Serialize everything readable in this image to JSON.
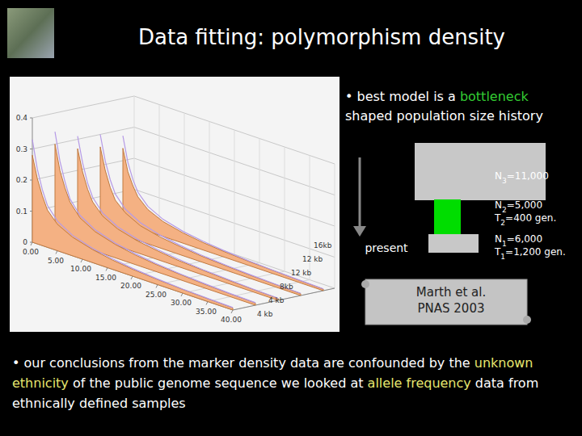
{
  "title": "Data fitting: polymorphism density",
  "chart_data": {
    "type": "area",
    "x": [
      0,
      1,
      2,
      3,
      5,
      8,
      12,
      16,
      20,
      25,
      30,
      35,
      40
    ],
    "xlim": [
      0,
      40
    ],
    "xticks": [
      {
        "value": 0,
        "label": "0.00"
      },
      {
        "value": 5,
        "label": "5.00"
      },
      {
        "value": 10,
        "label": "10.00"
      },
      {
        "value": 15,
        "label": "15.00"
      },
      {
        "value": 20,
        "label": "20.00"
      },
      {
        "value": 25,
        "label": "25.00"
      },
      {
        "value": 30,
        "label": "30.00"
      },
      {
        "value": 35,
        "label": "35.00"
      },
      {
        "value": 40,
        "label": "40.00"
      }
    ],
    "ylim": [
      0,
      0.4
    ],
    "yticks": [
      0,
      0.1,
      0.2,
      0.3,
      0.4
    ],
    "z_labels": [
      "4 kb",
      "4 kb",
      "8kb",
      "12 kb",
      "12 kb",
      "16kb"
    ],
    "grid": true,
    "series": [
      {
        "type": "area",
        "color": "#f4b183",
        "values": [
          0.28,
          0.21,
          0.16,
          0.12,
          0.085,
          0.06,
          0.042,
          0.03,
          0.022,
          0.016,
          0.012,
          0.009,
          0.007
        ]
      },
      {
        "type": "area",
        "color": "#f4b183",
        "values": [
          0.3,
          0.22,
          0.17,
          0.13,
          0.09,
          0.062,
          0.043,
          0.031,
          0.023,
          0.017,
          0.012,
          0.009,
          0.007
        ]
      },
      {
        "type": "area",
        "color": "#f4b183",
        "values": [
          0.27,
          0.2,
          0.15,
          0.115,
          0.08,
          0.055,
          0.038,
          0.028,
          0.02,
          0.015,
          0.011,
          0.008,
          0.006
        ]
      },
      {
        "type": "area",
        "color": "#f4b183",
        "values": [
          0.26,
          0.19,
          0.14,
          0.105,
          0.075,
          0.05,
          0.035,
          0.026,
          0.019,
          0.014,
          0.01,
          0.008,
          0.006
        ]
      },
      {
        "type": "area",
        "color": "#f4b183",
        "values": [
          0.24,
          0.17,
          0.13,
          0.1,
          0.07,
          0.048,
          0.033,
          0.024,
          0.018,
          0.013,
          0.01,
          0.007,
          0.005
        ]
      },
      {
        "type": "line",
        "color": "#b59ae6",
        "values": [
          0.33,
          0.24,
          0.18,
          0.135,
          0.095,
          0.066,
          0.046,
          0.034,
          0.025,
          0.018,
          0.013,
          0.01,
          0.008
        ]
      },
      {
        "type": "line",
        "color": "#b59ae6",
        "values": [
          0.34,
          0.25,
          0.19,
          0.14,
          0.098,
          0.068,
          0.047,
          0.035,
          0.026,
          0.019,
          0.014,
          0.01,
          0.008
        ]
      },
      {
        "type": "line",
        "color": "#b59ae6",
        "values": [
          0.31,
          0.23,
          0.17,
          0.13,
          0.09,
          0.062,
          0.043,
          0.032,
          0.024,
          0.017,
          0.013,
          0.009,
          0.007
        ]
      },
      {
        "type": "line",
        "color": "#b59ae6",
        "values": [
          0.3,
          0.22,
          0.165,
          0.125,
          0.087,
          0.06,
          0.041,
          0.03,
          0.022,
          0.016,
          0.012,
          0.009,
          0.007
        ]
      },
      {
        "type": "line",
        "color": "#b59ae6",
        "values": [
          0.28,
          0.2,
          0.15,
          0.115,
          0.08,
          0.055,
          0.038,
          0.028,
          0.021,
          0.015,
          0.011,
          0.008,
          0.006
        ]
      }
    ]
  },
  "bullets": [
    [
      {
        "text": "• best model is a "
      },
      {
        "text": "bottleneck",
        "color": "#33cc33"
      },
      {
        "text": " shaped population size history"
      }
    ],
    [
      {
        "text": "• our conclusions from the marker density data are confounded by the "
      },
      {
        "text": "unknown ethnicity",
        "color": "#e6e66e"
      },
      {
        "text": " of the public genome sequence we looked at "
      },
      {
        "text": "allele frequency",
        "color": "#e6e66e"
      },
      {
        "text": " data from ethnically defined samples"
      }
    ]
  ],
  "diagram": {
    "arrow_label": "present",
    "stages": [
      {
        "color": "#c8c8c8",
        "lines": [
          [
            {
              "text": "N"
            },
            {
              "text": "3",
              "sub": true
            },
            {
              "text": "=11,000"
            }
          ]
        ]
      },
      {
        "color": "#00dd00",
        "lines": [
          [
            {
              "text": "N"
            },
            {
              "text": "2",
              "sub": true
            },
            {
              "text": "=5,000"
            }
          ],
          [
            {
              "text": "T"
            },
            {
              "text": "2",
              "sub": true
            },
            {
              "text": "=400 gen."
            }
          ]
        ]
      },
      {
        "color": "#c8c8c8",
        "lines": [
          [
            {
              "text": "N"
            },
            {
              "text": "1",
              "sub": true
            },
            {
              "text": "=6,000"
            }
          ],
          [
            {
              "text": "T"
            },
            {
              "text": "1",
              "sub": true
            },
            {
              "text": "=1,200 gen."
            }
          ]
        ]
      }
    ]
  },
  "citation": [
    "Marth et al.",
    "PNAS 2003"
  ]
}
